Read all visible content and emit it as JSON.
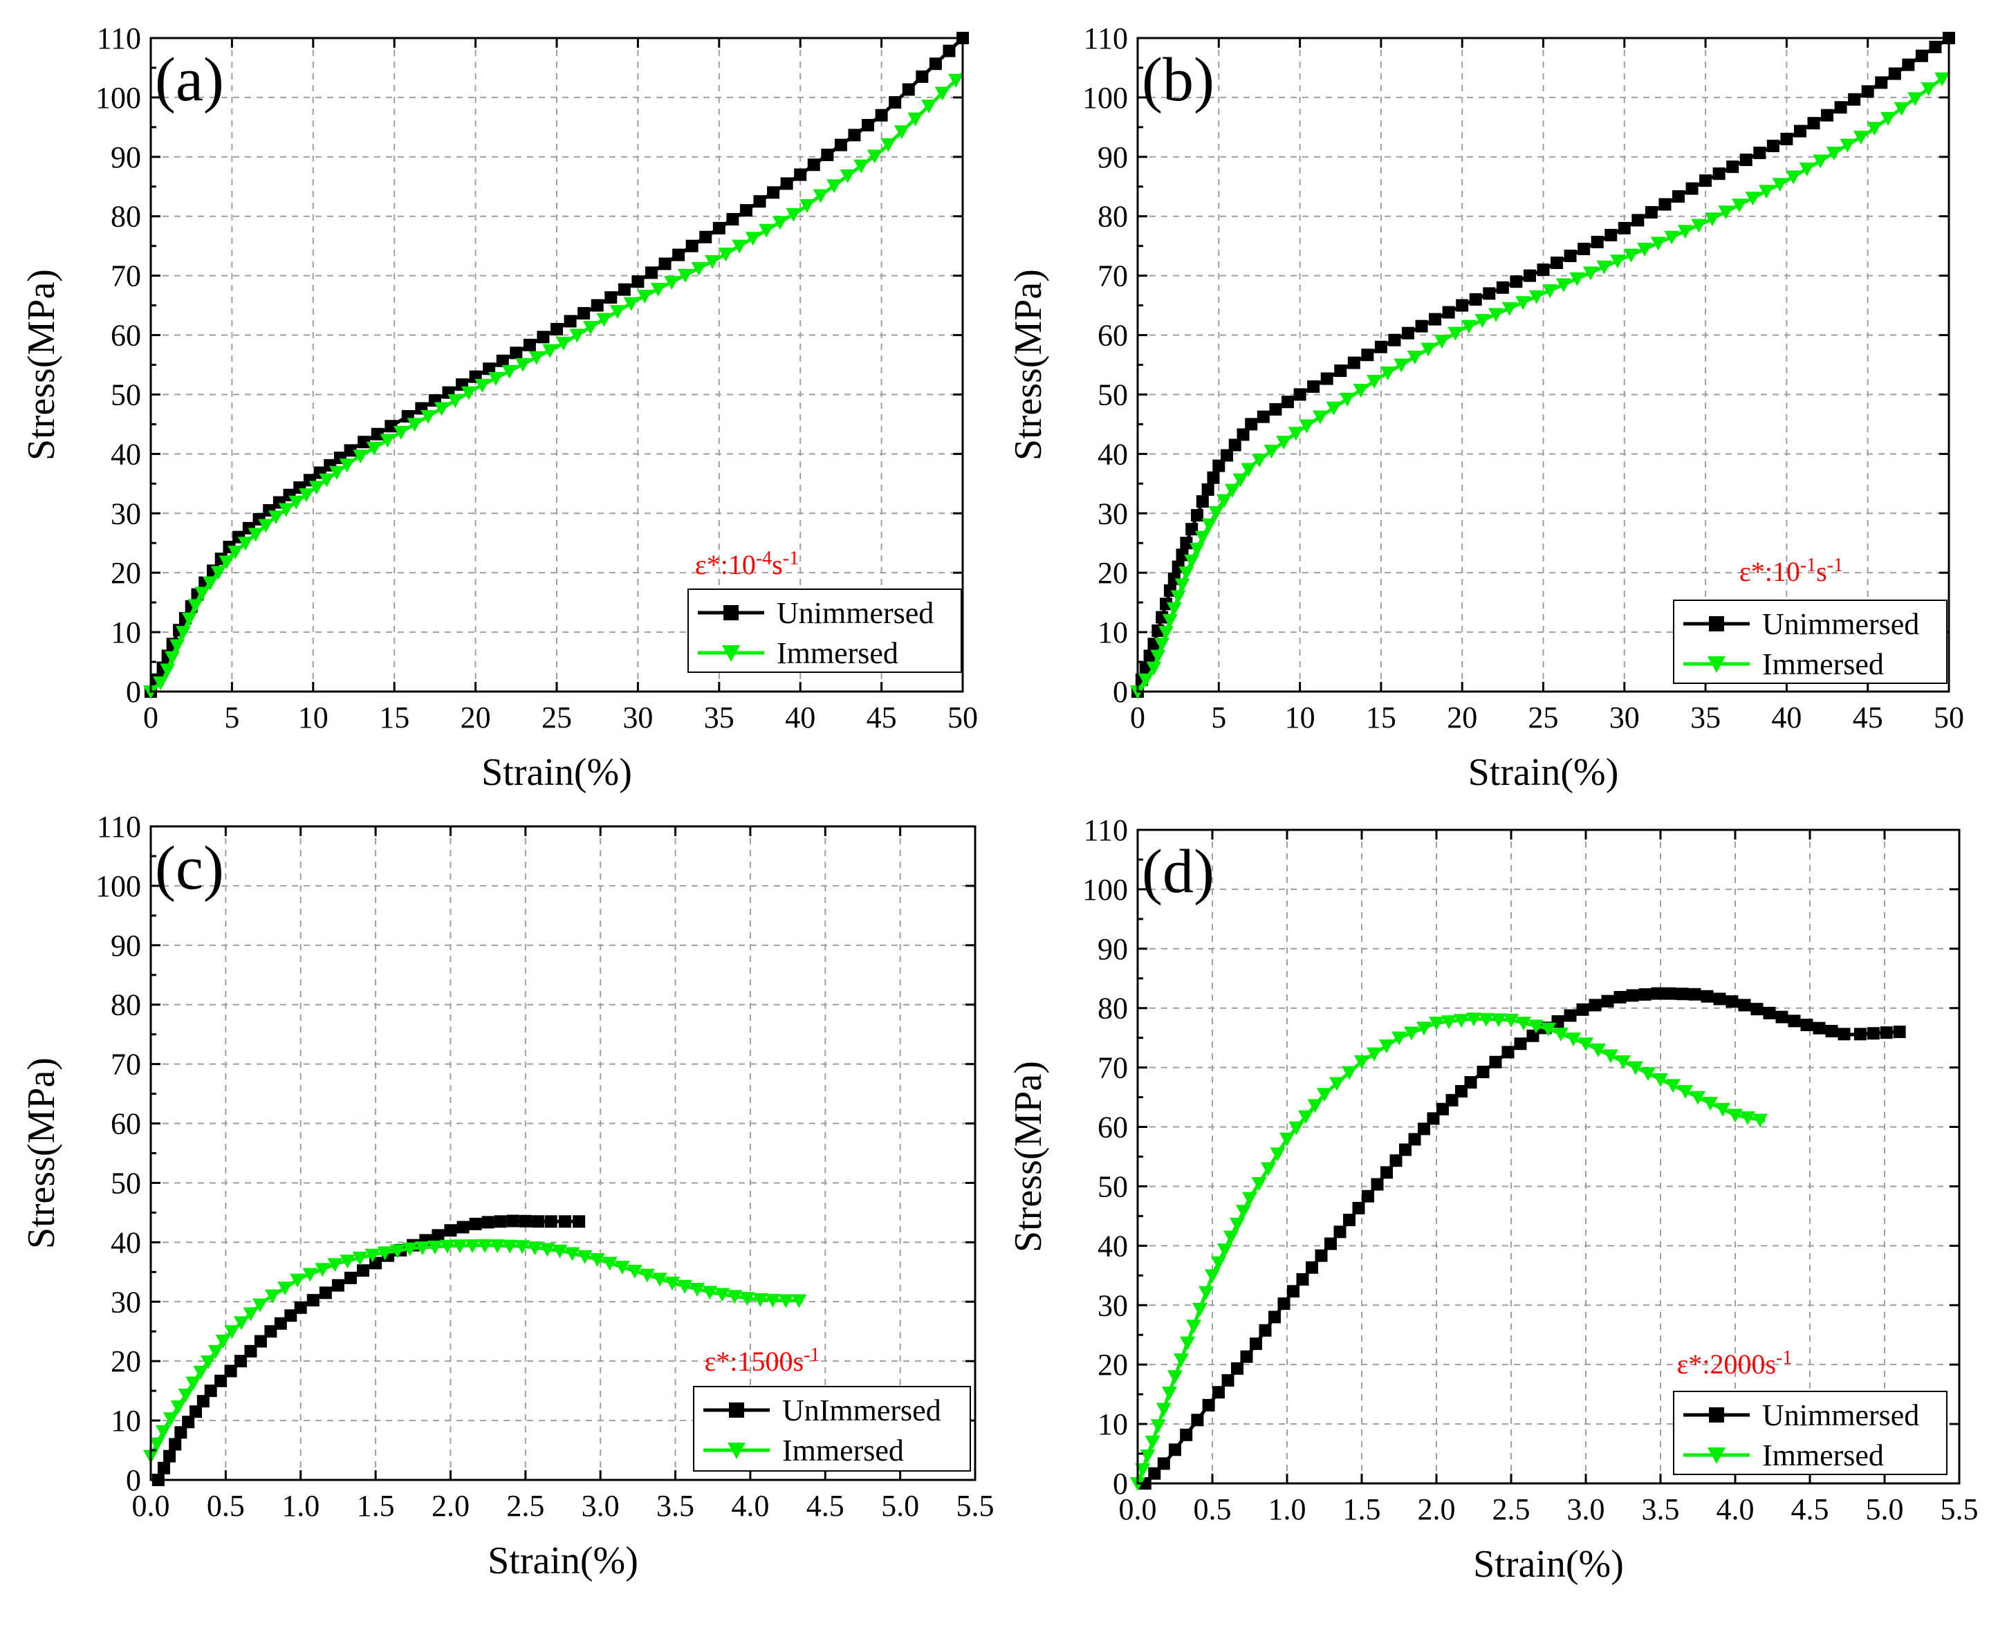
{
  "figure": {
    "y_axis_title": "Stress(MPa)",
    "x_axis_title": "Strain(%)"
  },
  "colors": {
    "unimmersed": "#000000",
    "immersed": "#00ee00",
    "rate_label": "#ff0000",
    "grid": "#9e9e9e"
  },
  "chart_data": [
    {
      "type": "line",
      "panel_label": "(a)",
      "rate_label": {
        "base": "ε*:10",
        "sup1": "-4",
        "mid": "s",
        "sup2": "-1"
      },
      "xlabel": "Strain(%)",
      "ylabel": "Stress(MPa)",
      "xlim": [
        0,
        50
      ],
      "ylim": [
        0,
        110
      ],
      "xticks": [
        0,
        5,
        10,
        15,
        20,
        25,
        30,
        35,
        40,
        45,
        50
      ],
      "xtick_labels": [
        "0",
        "5",
        "10",
        "15",
        "20",
        "25",
        "30",
        "35",
        "40",
        "45",
        "50"
      ],
      "yticks": [
        0,
        10,
        20,
        30,
        40,
        50,
        60,
        70,
        80,
        90,
        100,
        110
      ],
      "ytick_labels": [
        "0",
        "10",
        "20",
        "30",
        "40",
        "50",
        "60",
        "70",
        "80",
        "90",
        "100",
        "110"
      ],
      "grid": true,
      "legend_position": "bottom-right",
      "series": [
        {
          "name": "Unimmersed",
          "marker": "square",
          "x": [
            0,
            0.6,
            1.5,
            3,
            5,
            7.5,
            10,
            12.5,
            15,
            20,
            25,
            30,
            35,
            40,
            45,
            50
          ],
          "y": [
            0,
            3,
            9,
            17,
            25,
            31,
            36,
            41,
            45,
            53,
            61,
            69,
            78,
            87,
            97,
            110
          ]
        },
        {
          "name": "Immersed",
          "marker": "triangle-down",
          "x": [
            0,
            0.8,
            1.5,
            3,
            5,
            7.5,
            10,
            12.5,
            15,
            20,
            25,
            30,
            35,
            40,
            45,
            50
          ],
          "y": [
            0,
            2,
            7,
            16,
            23,
            29,
            34,
            39,
            43,
            51,
            58,
            66,
            73,
            81,
            91,
            104
          ]
        }
      ]
    },
    {
      "type": "line",
      "panel_label": "(b)",
      "rate_label": {
        "base": "ε*:10",
        "sup1": "-1",
        "mid": "s",
        "sup2": "-1"
      },
      "xlabel": "Strain(%)",
      "ylabel": "Stress(MPa)",
      "xlim": [
        0,
        50
      ],
      "ylim": [
        0,
        110
      ],
      "xticks": [
        0,
        5,
        10,
        15,
        20,
        25,
        30,
        35,
        40,
        45,
        50
      ],
      "xtick_labels": [
        "0",
        "5",
        "10",
        "15",
        "20",
        "25",
        "30",
        "35",
        "40",
        "45",
        "50"
      ],
      "yticks": [
        0,
        10,
        20,
        30,
        40,
        50,
        60,
        70,
        80,
        90,
        100,
        110
      ],
      "ytick_labels": [
        "0",
        "10",
        "20",
        "30",
        "40",
        "50",
        "60",
        "70",
        "80",
        "90",
        "100",
        "110"
      ],
      "grid": true,
      "legend_position": "bottom-right",
      "series": [
        {
          "name": "Unimmersed",
          "marker": "square",
          "x": [
            0,
            1,
            2,
            3,
            4,
            5,
            7,
            10,
            15,
            20,
            25,
            30,
            35,
            40,
            45,
            50
          ],
          "y": [
            0,
            8,
            17,
            25,
            32,
            38,
            45,
            50,
            58,
            65,
            71,
            78,
            86,
            93,
            101,
            110
          ]
        },
        {
          "name": "Immersed",
          "marker": "triangle-down",
          "x": [
            0,
            1,
            2,
            3,
            4,
            5,
            7,
            10,
            15,
            20,
            25,
            30,
            35,
            40,
            45,
            50
          ],
          "y": [
            0,
            4,
            12,
            20,
            26,
            31,
            38,
            44,
            53,
            61,
            67,
            73,
            79,
            86,
            94,
            104
          ]
        }
      ]
    },
    {
      "type": "line",
      "panel_label": "(c)",
      "rate_label": {
        "base": "ε*:1500s",
        "sup1": "-1",
        "mid": "",
        "sup2": ""
      },
      "xlabel": "Strain(%)",
      "ylabel": "Stress(MPa)",
      "xlim": [
        0,
        5.5
      ],
      "ylim": [
        0,
        110
      ],
      "xticks": [
        0,
        0.5,
        1,
        1.5,
        2,
        2.5,
        3,
        3.5,
        4,
        4.5,
        5,
        5.5
      ],
      "xtick_labels": [
        "0.0",
        "0.5",
        "1.0",
        "1.5",
        "2.0",
        "2.5",
        "3.0",
        "3.5",
        "4.0",
        "4.5",
        "5.0",
        "5.5"
      ],
      "yticks": [
        0,
        10,
        20,
        30,
        40,
        50,
        60,
        70,
        80,
        90,
        100,
        110
      ],
      "ytick_labels": [
        "0",
        "10",
        "20",
        "30",
        "40",
        "50",
        "60",
        "70",
        "80",
        "90",
        "100",
        "110"
      ],
      "grid": true,
      "legend_position": "bottom-right",
      "series": [
        {
          "name": "UnImmersed",
          "marker": "square",
          "x": [
            0.05,
            0.2,
            0.4,
            0.6,
            0.8,
            1.0,
            1.2,
            1.4,
            1.6,
            1.8,
            2.0,
            2.2,
            2.4,
            2.6,
            2.88
          ],
          "y": [
            0,
            8,
            15,
            20,
            25,
            29,
            32,
            35,
            38,
            40,
            42,
            43.3,
            43.6,
            43.5,
            43.5
          ]
        },
        {
          "name": "Immersed",
          "marker": "triangle-down",
          "x": [
            0,
            0.1,
            0.3,
            0.5,
            0.75,
            1.0,
            1.25,
            1.5,
            1.75,
            2.0,
            2.25,
            2.5,
            2.75,
            3.0,
            3.25,
            3.5,
            3.75,
            4.0,
            4.2,
            4.35
          ],
          "y": [
            4,
            9,
            17,
            24,
            30,
            34,
            36.5,
            38,
            39,
            39.4,
            39.5,
            39.3,
            38.5,
            37,
            35,
            33,
            31.5,
            30.5,
            30.2,
            30.2
          ]
        }
      ]
    },
    {
      "type": "line",
      "panel_label": "(d)",
      "rate_label": {
        "base": "ε*:2000s",
        "sup1": "-1",
        "mid": "",
        "sup2": ""
      },
      "xlabel": "Strain(%)",
      "ylabel": "Stress(MPa)",
      "xlim": [
        0,
        5.5
      ],
      "ylim": [
        0,
        110
      ],
      "xticks": [
        0,
        0.5,
        1,
        1.5,
        2,
        2.5,
        3,
        3.5,
        4,
        4.5,
        5,
        5.5
      ],
      "xtick_labels": [
        "0.0",
        "0.5",
        "1.0",
        "1.5",
        "2.0",
        "2.5",
        "3.0",
        "3.5",
        "4.0",
        "4.5",
        "5.0",
        "5.5"
      ],
      "yticks": [
        0,
        10,
        20,
        30,
        40,
        50,
        60,
        70,
        80,
        90,
        100,
        110
      ],
      "ytick_labels": [
        "0",
        "10",
        "20",
        "30",
        "40",
        "50",
        "60",
        "70",
        "80",
        "90",
        "100",
        "110"
      ],
      "grid": true,
      "legend_position": "bottom-right",
      "series": [
        {
          "name": "Unimmersed",
          "marker": "square",
          "x": [
            0.05,
            0.2,
            0.5,
            0.75,
            1.0,
            1.25,
            1.5,
            1.75,
            2.0,
            2.25,
            2.5,
            2.75,
            3.0,
            3.25,
            3.5,
            3.75,
            4.0,
            4.25,
            4.5,
            4.75,
            5.1
          ],
          "y": [
            0,
            4,
            14,
            22,
            31,
            39,
            47,
            55,
            62,
            68,
            73,
            77,
            80,
            82,
            82.5,
            82.3,
            81,
            79,
            77,
            75.5,
            76
          ]
        },
        {
          "name": "Immersed",
          "marker": "triangle-down",
          "x": [
            0,
            0.1,
            0.25,
            0.5,
            0.75,
            1.0,
            1.25,
            1.5,
            1.75,
            2.0,
            2.25,
            2.5,
            2.75,
            3.0,
            3.25,
            3.5,
            3.75,
            4.0,
            4.2
          ],
          "y": [
            0,
            7,
            18,
            35,
            48,
            58,
            65.5,
            71,
            75,
            77.5,
            78.2,
            78,
            76.5,
            74,
            71,
            68,
            65,
            62,
            61
          ]
        }
      ]
    }
  ]
}
